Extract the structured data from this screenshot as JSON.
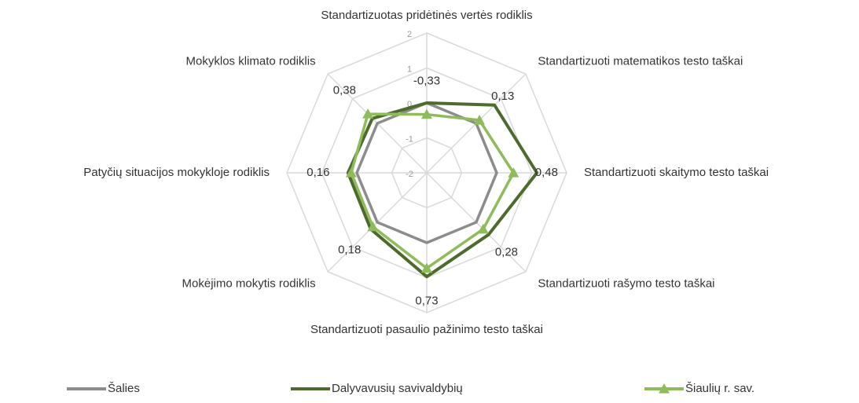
{
  "chart_data": {
    "type": "radar",
    "categories": [
      "Standartizuotas pridėtinės vertės rodiklis",
      "Standartizuoti matematikos testo taškai",
      "Standartizuoti skaitymo testo taškai",
      "Standartizuoti rašymo testo taškai",
      "Standartizuoti pasaulio pažinimo testo taškai",
      "Mokėjimo mokytis rodiklis",
      "Patyčių situacijos mokykloje rodiklis",
      "Mokyklos klimato rodiklis"
    ],
    "ylim": [
      -2,
      2
    ],
    "yticks": [
      -2,
      -1,
      0,
      1,
      2
    ],
    "grid": true,
    "legend": "bottom",
    "series": [
      {
        "name": "Šalies",
        "color": "#8c8c8c",
        "values": [
          0,
          0,
          0,
          0,
          0,
          0,
          0,
          0
        ]
      },
      {
        "name": "Dalyvavusių savivaldybių",
        "color": "#4e6b2e",
        "values": [
          0,
          0.74,
          1.15,
          0.5,
          0.97,
          0.27,
          0.25,
          0.2
        ]
      },
      {
        "name": "Šiaulių r. sav.",
        "color": "#8fbc5a",
        "marker": "triangle",
        "values": [
          -0.33,
          0.13,
          0.48,
          0.28,
          0.73,
          0.18,
          0.16,
          0.38
        ],
        "value_labels": [
          "-0,33",
          "0,13",
          "0,48",
          "0,28",
          "0,73",
          "0,18",
          "0,16",
          "0,38"
        ]
      }
    ]
  }
}
